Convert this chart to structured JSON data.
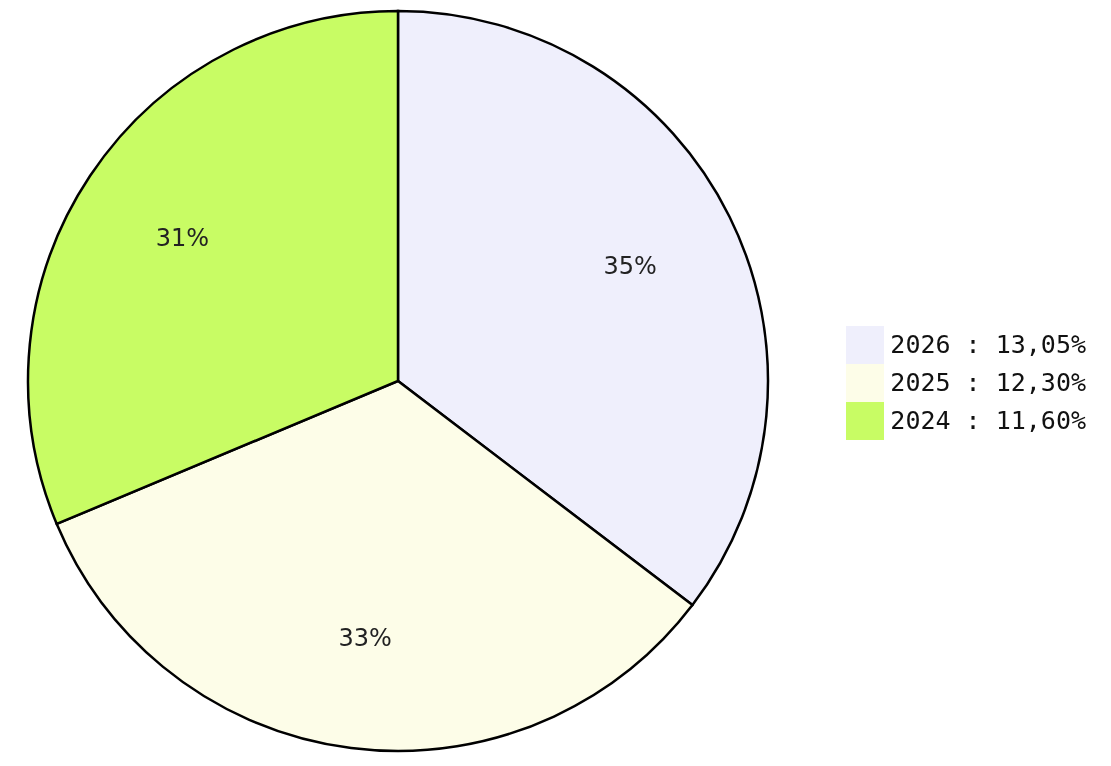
{
  "chart_data": {
    "type": "pie",
    "categories": [
      "2026 : 13,05%",
      "2025 : 12,30%",
      "2024 : 11,60%"
    ],
    "values": [
      35,
      33,
      31
    ],
    "value_labels": [
      "35%",
      "33%",
      "31%"
    ],
    "colors": [
      "#efeffc",
      "#fdfde8",
      "#c8fc64"
    ],
    "legend": "right"
  }
}
